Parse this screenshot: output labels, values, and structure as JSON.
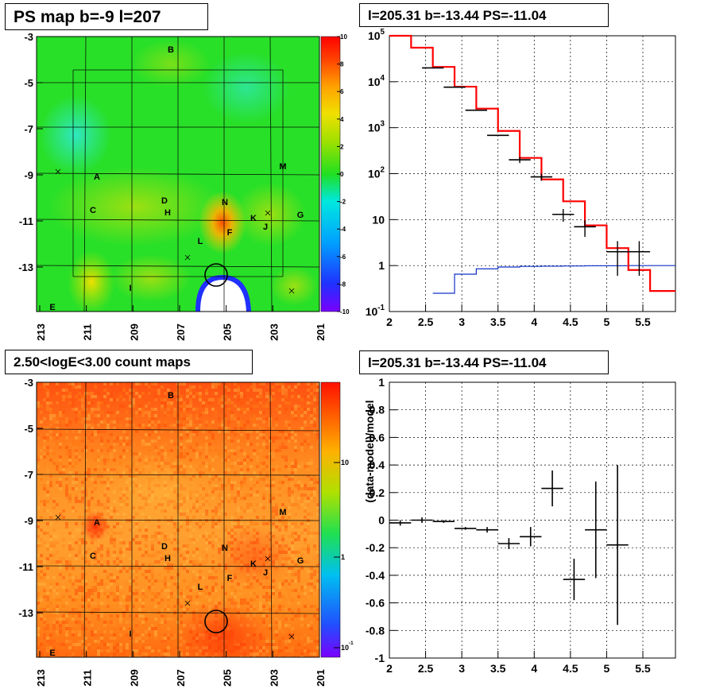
{
  "chart_data": [
    {
      "type": "heatmap",
      "title": "PS map b=-9 l=207",
      "x_ticks": [
        "213",
        "211",
        "209",
        "207",
        "205",
        "203",
        "201"
      ],
      "y_ticks": [
        "-3",
        "-5",
        "-7",
        "-9",
        "-11",
        "-13"
      ],
      "colorbar_ticks": [
        "10",
        "8",
        "6",
        "4",
        "2",
        "0",
        "-2",
        "-4",
        "-6",
        "-8",
        "-10"
      ],
      "zlim": [
        -10,
        10
      ],
      "labels": [
        "B",
        "A",
        "C",
        "D",
        "H",
        "N",
        "K",
        "J",
        "F",
        "L",
        "M",
        "G",
        "I",
        "E"
      ]
    },
    {
      "type": "line",
      "title": "l=205.31 b=-13.44 PS=-11.04",
      "log_y": true,
      "grid": true,
      "xlim": [
        2,
        5.95
      ],
      "ylim": [
        0.1,
        100000
      ],
      "x_ticks": [
        "2",
        "2.5",
        "3",
        "3.5",
        "4",
        "4.5",
        "5",
        "5.5"
      ],
      "y_ticks": [
        "10^5",
        "10^4",
        "10^3",
        "10^2",
        "10",
        "1",
        "10^-1"
      ],
      "model_total": {
        "edges": [
          2.0,
          2.3,
          2.6,
          2.9,
          3.2,
          3.5,
          3.8,
          4.1,
          4.4,
          4.7,
          5.0,
          5.3,
          5.6,
          5.95
        ],
        "values": [
          100000,
          55000,
          21000,
          7800,
          2600,
          850,
          220,
          75,
          25,
          7.5,
          2.4,
          0.8,
          0.28
        ]
      },
      "point_source_model": {
        "edges": [
          2.6,
          2.9,
          3.2,
          3.5,
          3.8,
          4.1,
          4.4,
          4.7,
          5.0,
          5.3,
          5.6,
          5.95
        ],
        "values": [
          0.25,
          0.65,
          0.85,
          0.93,
          0.96,
          0.97,
          0.98,
          0.99,
          0.99,
          1.0,
          1.0
        ]
      },
      "data": [
        {
          "x": 2.6,
          "y": 20000,
          "dx": 0.15,
          "err": 0
        },
        {
          "x": 2.9,
          "y": 7600,
          "dx": 0.15,
          "err": 0
        },
        {
          "x": 3.2,
          "y": 2400,
          "dx": 0.15,
          "err": 0
        },
        {
          "x": 3.5,
          "y": 680,
          "dx": 0.15,
          "err": 0
        },
        {
          "x": 3.8,
          "y": 200,
          "dx": 0.15,
          "err": 30
        },
        {
          "x": 4.1,
          "y": 85,
          "dx": 0.15,
          "err": 15
        },
        {
          "x": 4.4,
          "y": 13,
          "dx": 0.15,
          "err": 4
        },
        {
          "x": 4.7,
          "y": 7,
          "dx": 0.15,
          "err": 2.8
        },
        {
          "x": 5.15,
          "y": 2,
          "dx": 0.15,
          "err": 1.4
        },
        {
          "x": 5.45,
          "y": 2,
          "dx": 0.15,
          "err": 1.4
        }
      ]
    },
    {
      "type": "heatmap",
      "title": "2.50<logE<3.00 count maps",
      "x_ticks": [
        "213",
        "211",
        "209",
        "207",
        "205",
        "203",
        "201"
      ],
      "y_ticks": [
        "-3",
        "-5",
        "-7",
        "-9",
        "-11",
        "-13"
      ],
      "colorbar_ticks": [
        "10",
        "1",
        "10^-1"
      ],
      "log_z": true,
      "labels": [
        "B",
        "A",
        "C",
        "D",
        "H",
        "N",
        "K",
        "J",
        "F",
        "L",
        "M",
        "G",
        "I",
        "E"
      ]
    },
    {
      "type": "scatter",
      "title": "l=205.31 b=-13.44 PS=-11.04",
      "ylabel": "(data-model)/model",
      "grid": true,
      "xlim": [
        2,
        5.95
      ],
      "ylim": [
        -1,
        1
      ],
      "x_ticks": [
        "2",
        "2.5",
        "3",
        "3.5",
        "4",
        "4.5",
        "5",
        "5.5"
      ],
      "y_ticks": [
        "1",
        "0.8",
        "0.6",
        "0.4",
        "0.2",
        "0",
        "-0.2",
        "-0.4",
        "-0.6",
        "-0.8",
        "-1"
      ],
      "points": [
        {
          "x": 2.15,
          "y": -0.02,
          "dx": 0.15,
          "err": 0.02
        },
        {
          "x": 2.45,
          "y": 0.0,
          "dx": 0.15,
          "err": 0.02
        },
        {
          "x": 2.75,
          "y": -0.01,
          "dx": 0.15,
          "err": 0.01
        },
        {
          "x": 3.05,
          "y": -0.06,
          "dx": 0.15,
          "err": 0.01
        },
        {
          "x": 3.35,
          "y": -0.07,
          "dx": 0.15,
          "err": 0.02
        },
        {
          "x": 3.65,
          "y": -0.17,
          "dx": 0.15,
          "err": 0.04
        },
        {
          "x": 3.95,
          "y": -0.12,
          "dx": 0.15,
          "err": 0.07
        },
        {
          "x": 4.25,
          "y": 0.23,
          "dx": 0.15,
          "err": 0.13
        },
        {
          "x": 4.55,
          "y": -0.43,
          "dx": 0.15,
          "err": 0.15
        },
        {
          "x": 4.85,
          "y": -0.07,
          "dx": 0.15,
          "err": 0.35
        },
        {
          "x": 5.15,
          "y": -0.18,
          "dx": 0.15,
          "err": 0.58
        }
      ]
    }
  ]
}
